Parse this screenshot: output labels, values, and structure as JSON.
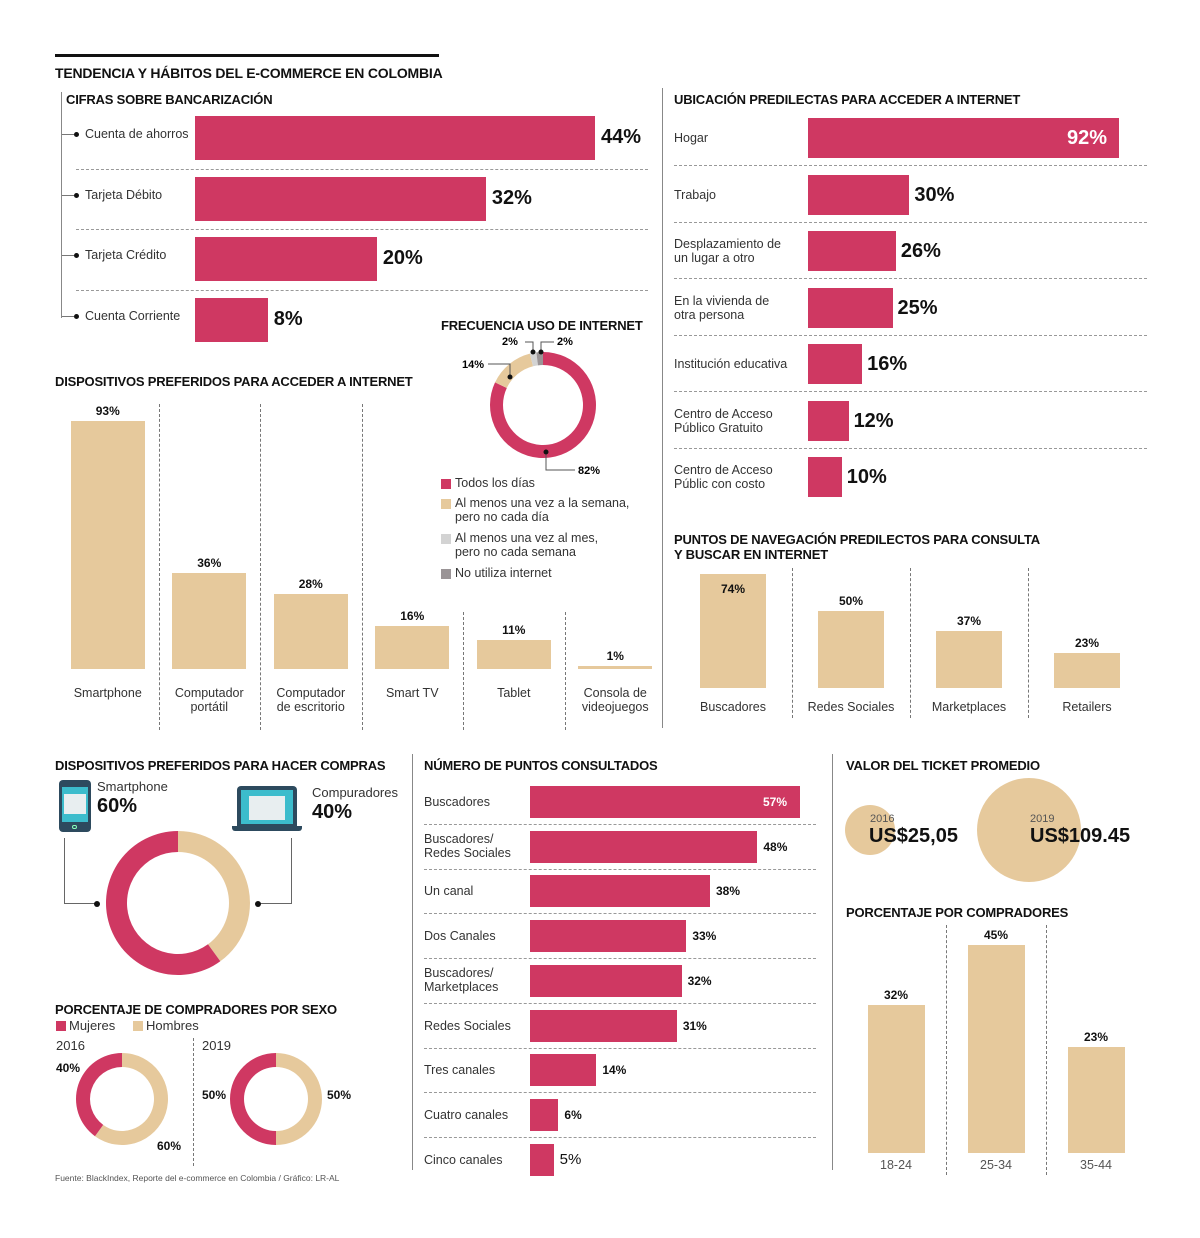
{
  "header": {
    "title": "TENDENCIA Y HÁBITOS DEL E-COMMERCE EN COLOMBIA"
  },
  "colors": {
    "pink": "#cf3862",
    "tan": "#e6c99c",
    "light_gray": "#d3d3d3",
    "dark_gray": "#9a9496"
  },
  "footer": {
    "source": "Fuente: BlackIndex, Reporte del e-commerce en Colombia / Gráfico: LR-AL"
  },
  "chart_data": [
    {
      "id": "bancarizacion",
      "type": "bar",
      "orientation": "horizontal",
      "title": "CIFRAS SOBRE BANCARIZACIÓN",
      "categories": [
        "Cuenta de ahorros",
        "Tarjeta Débito",
        "Tarjeta Crédito",
        "Cuenta Corriente"
      ],
      "values": [
        44,
        32,
        20,
        8
      ],
      "labels": [
        "44%",
        "32%",
        "20%",
        "8%"
      ]
    },
    {
      "id": "frecuencia",
      "type": "pie",
      "title": "FRECUENCIA USO DE INTERNET",
      "categories": [
        "Todos los días",
        "Al menos una vez a la semana, pero no cada día",
        "Al menos una vez al mes, pero no cada semana",
        "No utiliza internet"
      ],
      "legend": [
        {
          "line1": "Todos los días",
          "line2": ""
        },
        {
          "line1": "Al menos una vez a la semana,",
          "line2": "pero no cada día"
        },
        {
          "line1": "Al menos una vez al mes,",
          "line2": "pero no cada semana"
        },
        {
          "line1": "No utiliza internet",
          "line2": ""
        }
      ],
      "values": [
        82,
        14,
        2,
        2
      ],
      "labels": [
        "82%",
        "14%",
        "2%",
        "2%"
      ],
      "slice_colors": [
        "#cf3862",
        "#e6c99c",
        "#d3d3d3",
        "#9a9496"
      ]
    },
    {
      "id": "dispositivos_acceso",
      "type": "bar",
      "title": "DISPOSITIVOS PREFERIDOS PARA ACCEDER A INTERNET",
      "categories": [
        [
          "Smartphone",
          ""
        ],
        [
          "Computador",
          "portátil"
        ],
        [
          "Computador",
          "de escritorio"
        ],
        [
          "Smart TV",
          ""
        ],
        [
          "Tablet",
          ""
        ],
        [
          "Consola de",
          "videojuegos"
        ]
      ],
      "values": [
        93,
        36,
        28,
        16,
        11,
        1
      ],
      "labels": [
        "93%",
        "36%",
        "28%",
        "16%",
        "11%",
        "1%"
      ]
    },
    {
      "id": "ubicacion",
      "type": "bar",
      "orientation": "horizontal",
      "title": "UBICACIÓN PREDILECTAS PARA ACCEDER A INTERNET",
      "categories": [
        [
          "Hogar",
          ""
        ],
        [
          "Trabajo",
          ""
        ],
        [
          "Desplazamiento de",
          "un lugar a otro"
        ],
        [
          "En la vivienda de",
          "otra persona"
        ],
        [
          "Institución educativa",
          ""
        ],
        [
          "Centro de Acceso",
          "Público Gratuito"
        ],
        [
          "Centro de Acceso",
          "Públic con costo"
        ]
      ],
      "values": [
        92,
        30,
        26,
        25,
        16,
        12,
        10
      ],
      "labels": [
        "92%",
        "30%",
        "26%",
        "25%",
        "16%",
        "12%",
        "10%"
      ]
    },
    {
      "id": "puntos_navegacion",
      "type": "bar",
      "title": "PUNTOS DE NAVEGACIÓN PREDILECTOS PARA CONSULTA Y BUSCAR EN INTERNET",
      "title_lines": [
        "PUNTOS DE NAVEGACIÓN PREDILECTOS PARA CONSULTA",
        "Y BUSCAR EN INTERNET"
      ],
      "categories": [
        "Buscadores",
        "Redes Sociales",
        "Marketplaces",
        "Retailers"
      ],
      "values": [
        74,
        50,
        37,
        23
      ],
      "labels": [
        "74%",
        "50%",
        "37%",
        "23%"
      ]
    },
    {
      "id": "dispositivos_compras",
      "type": "pie",
      "title": "DISPOSITIVOS PREFERIDOS PARA HACER COMPRAS",
      "categories": [
        "Smartphone",
        "Compuradores"
      ],
      "values": [
        60,
        40
      ],
      "labels": [
        "60%",
        "40%"
      ],
      "slice_colors": [
        "#cf3862",
        "#e6c99c"
      ]
    },
    {
      "id": "sexo",
      "type": "pie",
      "title": "PORCENTAJE  DE COMPRADORES POR SEXO",
      "legend": [
        "Mujeres",
        "Hombres"
      ],
      "series": [
        {
          "name": "2016",
          "values": [
            40,
            60
          ],
          "labels": [
            "40%",
            "60%"
          ]
        },
        {
          "name": "2019",
          "values": [
            50,
            50
          ],
          "labels": [
            "50%",
            "50%"
          ]
        }
      ]
    },
    {
      "id": "puntos_consultados",
      "type": "bar",
      "orientation": "horizontal",
      "title": "NÚMERO DE PUNTOS CONSULTADOS",
      "categories": [
        [
          "Buscadores",
          ""
        ],
        [
          "Buscadores/",
          "Redes Sociales"
        ],
        [
          "Un canal",
          ""
        ],
        [
          "Dos Canales",
          ""
        ],
        [
          "Buscadores/",
          "Marketplaces"
        ],
        [
          "Redes Sociales",
          ""
        ],
        [
          "Tres canales",
          ""
        ],
        [
          "Cuatro canales",
          ""
        ],
        [
          "Cinco canales",
          ""
        ]
      ],
      "values": [
        57,
        48,
        38,
        33,
        32,
        31,
        14,
        6,
        5
      ],
      "labels": [
        "57%",
        "48%",
        "38%",
        "33%",
        "32%",
        "31%",
        "14%",
        "6%",
        "5%"
      ]
    },
    {
      "id": "ticket",
      "type": "scatter",
      "title": "VALOR DEL TICKET PROMEDIO",
      "categories": [
        "2016",
        "2019"
      ],
      "values": [
        25.05,
        109.45
      ],
      "labels": [
        "US$25,05",
        "US$109.45"
      ]
    },
    {
      "id": "edad",
      "type": "bar",
      "title": "PORCENTAJE POR COMPRADORES",
      "categories": [
        "18-24",
        "25-34",
        "35-44"
      ],
      "values": [
        32,
        45,
        23
      ],
      "labels": [
        "32%",
        "45%",
        "23%"
      ]
    }
  ]
}
